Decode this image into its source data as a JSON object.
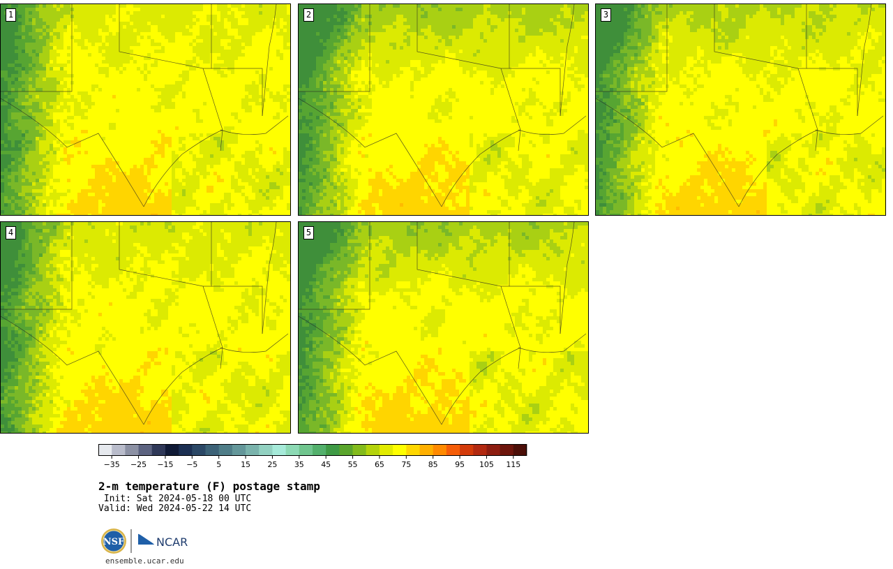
{
  "panels": [
    {
      "label": "1"
    },
    {
      "label": "2"
    },
    {
      "label": "3"
    },
    {
      "label": "4"
    },
    {
      "label": "5"
    }
  ],
  "colorbar": {
    "tick_labels": [
      "−35",
      "−25",
      "−15",
      "−5",
      "5",
      "15",
      "25",
      "35",
      "45",
      "55",
      "65",
      "75",
      "85",
      "95",
      "105",
      "115"
    ],
    "levels": [
      -40,
      -35,
      -30,
      -25,
      -20,
      -15,
      -10,
      -5,
      0,
      5,
      10,
      15,
      20,
      25,
      30,
      35,
      40,
      45,
      50,
      55,
      60,
      65,
      70,
      75,
      80,
      85,
      90,
      95,
      100,
      105,
      110,
      115,
      120
    ],
    "colors": [
      "#e6e9ee",
      "#b9bccb",
      "#8c91a4",
      "#5c6380",
      "#2f3858",
      "#101a36",
      "#1b2f52",
      "#2b4866",
      "#3c6277",
      "#4f7d88",
      "#64979a",
      "#7ab3ac",
      "#92d1c1",
      "#a6ead9",
      "#8cd9b4",
      "#70c58e",
      "#53b06c",
      "#3f9a45",
      "#5aa52c",
      "#83bb1c",
      "#b4d30c",
      "#e2eb00",
      "#ffff00",
      "#ffd700",
      "#ffb000",
      "#ff8a00",
      "#f55d08",
      "#d33b0a",
      "#b22910",
      "#8d1d10",
      "#6d150c",
      "#4c0f08"
    ]
  },
  "title": "2-m temperature (F) postage stamp",
  "init": " Init: Sat 2024-05-18 00 UTC",
  "valid": "Valid: Wed 2024-05-22 14 UTC",
  "logo": {
    "nsf_text": "NSF",
    "ncar_text": "NCAR"
  },
  "url": "ensemble.ucar.edu"
}
